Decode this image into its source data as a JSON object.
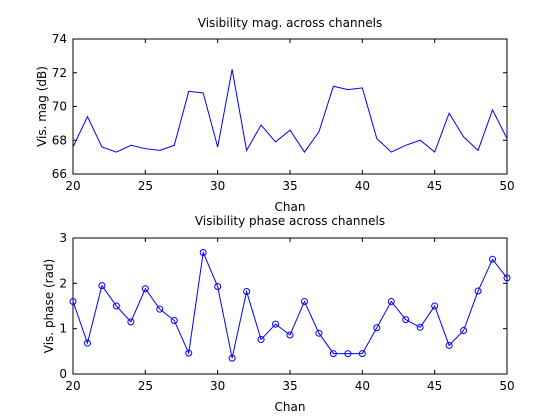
{
  "chart_data": [
    {
      "type": "line",
      "title": "Visibility mag. across channels",
      "xlabel": "Chan",
      "ylabel": "Vis. mag (dB)",
      "xlim": [
        20,
        50
      ],
      "ylim": [
        66,
        74
      ],
      "xticks": [
        "20",
        "25",
        "30",
        "35",
        "40",
        "45",
        "50"
      ],
      "yticks": [
        "66",
        "68",
        "70",
        "72",
        "74"
      ],
      "marker": "none",
      "line_color": "#0000ff",
      "grid": false,
      "x": [
        20,
        21,
        22,
        23,
        24,
        25,
        26,
        27,
        28,
        29,
        30,
        31,
        32,
        33,
        34,
        35,
        36,
        37,
        38,
        39,
        40,
        41,
        42,
        43,
        44,
        45,
        46,
        47,
        48,
        49,
        50
      ],
      "values": [
        67.6,
        69.4,
        67.6,
        67.3,
        67.7,
        67.5,
        67.4,
        67.7,
        70.9,
        70.8,
        67.6,
        72.2,
        67.4,
        68.9,
        67.9,
        68.6,
        67.3,
        68.5,
        71.2,
        71.0,
        71.1,
        68.1,
        67.3,
        67.7,
        68.0,
        67.3,
        69.6,
        68.2,
        67.4,
        69.8,
        68.1
      ]
    },
    {
      "type": "line",
      "title": "Visibility phase across channels",
      "xlabel": "Chan",
      "ylabel": "Vis. phase (rad)",
      "xlim": [
        20,
        50
      ],
      "ylim": [
        0,
        3
      ],
      "xticks": [
        "20",
        "25",
        "30",
        "35",
        "40",
        "45",
        "50"
      ],
      "yticks": [
        "0",
        "1",
        "2",
        "3"
      ],
      "marker": "circle",
      "line_color": "#0000ff",
      "grid": false,
      "x": [
        20,
        21,
        22,
        23,
        24,
        25,
        26,
        27,
        28,
        29,
        30,
        31,
        32,
        33,
        34,
        35,
        36,
        37,
        38,
        39,
        40,
        41,
        42,
        43,
        44,
        45,
        46,
        47,
        48,
        49,
        50
      ],
      "values": [
        1.6,
        0.68,
        1.95,
        1.5,
        1.15,
        1.88,
        1.43,
        1.18,
        0.46,
        2.68,
        1.93,
        0.35,
        1.82,
        0.76,
        1.1,
        0.86,
        1.6,
        0.9,
        0.45,
        0.45,
        0.45,
        1.02,
        1.6,
        1.2,
        1.03,
        1.5,
        0.63,
        0.96,
        1.83,
        2.53,
        2.12
      ]
    }
  ]
}
